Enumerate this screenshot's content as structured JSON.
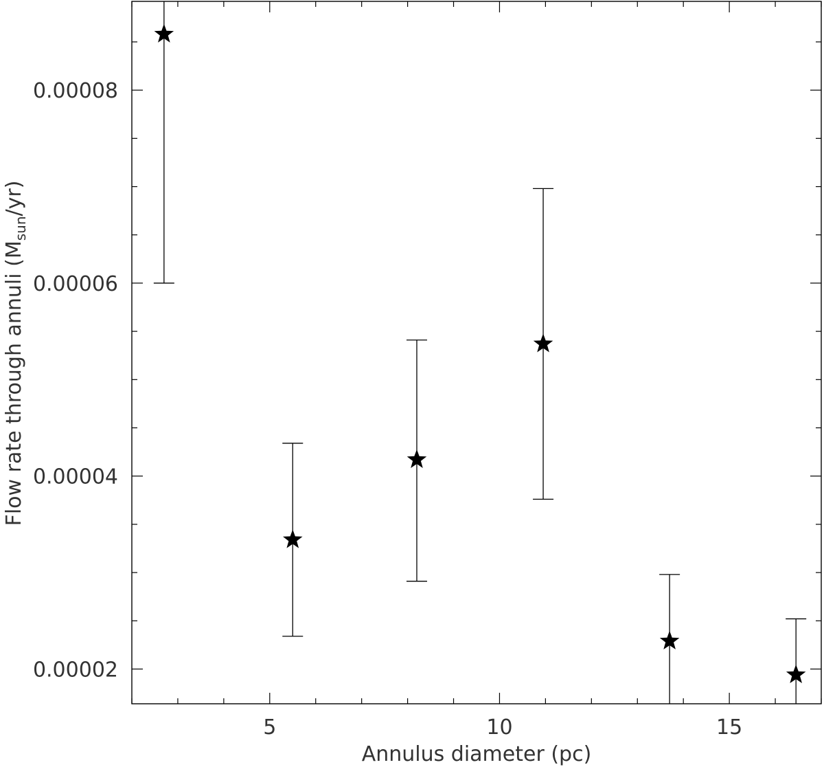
{
  "chart_data": {
    "type": "scatter",
    "title": "",
    "xlabel": "Annulus diameter (pc)",
    "ylabel": {
      "prefix": "Flow rate through annuli (M",
      "subscript": "sun",
      "suffix": "/yr)"
    },
    "xlim": [
      2.0,
      17.0
    ],
    "ylim": [
      1.64e-05,
      8.92e-05
    ],
    "x_ticks": [
      5,
      10,
      15
    ],
    "x_tick_labels": [
      "5",
      "10",
      "15"
    ],
    "x_minor_step": 1,
    "y_ticks": [
      2e-05,
      4e-05,
      6e-05,
      8e-05
    ],
    "y_tick_labels": [
      "0.00002",
      "0.00004",
      "0.00006",
      "0.00008"
    ],
    "y_minor_step": 5e-06,
    "grid": false,
    "marker": "star",
    "points": [
      {
        "x": 2.7,
        "y": 8.58e-05,
        "err_low": 6e-05,
        "err_high": 8.92e-05
      },
      {
        "x": 5.5,
        "y": 3.34e-05,
        "err_low": 2.34e-05,
        "err_high": 4.34e-05
      },
      {
        "x": 8.2,
        "y": 4.17e-05,
        "err_low": 2.91e-05,
        "err_high": 5.41e-05
      },
      {
        "x": 10.95,
        "y": 5.37e-05,
        "err_low": 3.76e-05,
        "err_high": 6.98e-05
      },
      {
        "x": 13.7,
        "y": 2.29e-05,
        "err_low": 1.64e-05,
        "err_high": 2.98e-05
      },
      {
        "x": 16.45,
        "y": 1.94e-05,
        "err_low": 1.64e-05,
        "err_high": 2.52e-05
      }
    ]
  }
}
